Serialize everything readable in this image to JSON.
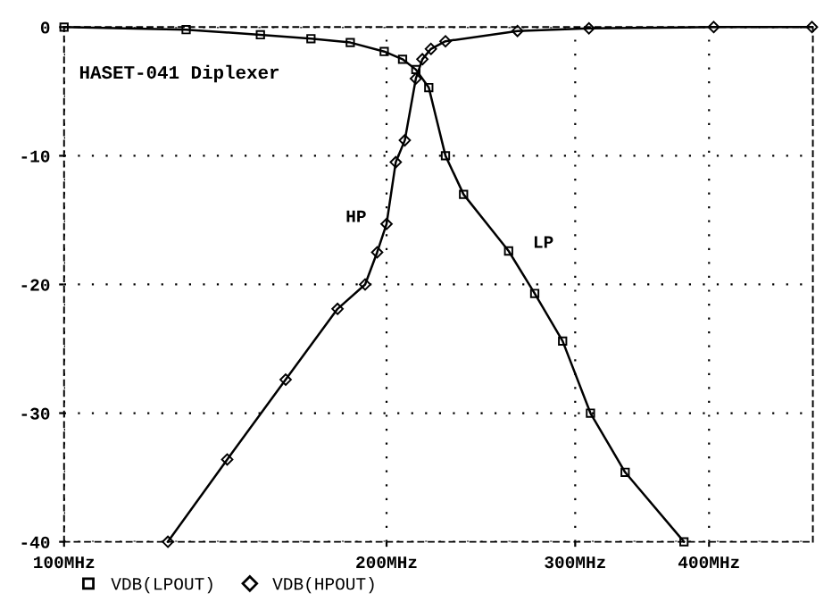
{
  "chart_data": {
    "type": "line",
    "title": "HASET-041 Diplexer",
    "log": "x",
    "xlim": [
      100,
      500
    ],
    "xticks": [
      {
        "value": 100,
        "label": "100MHz"
      },
      {
        "value": 200,
        "label": "200MHz"
      },
      {
        "value": 300,
        "label": "300MHz"
      },
      {
        "value": 400,
        "label": "400MHz"
      }
    ],
    "ylim": [
      -40,
      0
    ],
    "yticks": [
      -40,
      -30,
      -20,
      -10,
      0
    ],
    "grid": true,
    "legend": "bottom",
    "line_style": "solid",
    "annotations": [
      "HP",
      "LP"
    ],
    "series": [
      {
        "name": "VDB(LPOUT)",
        "color": "#000000",
        "marker": "square",
        "x": [
          100,
          130,
          152.5,
          170,
          185,
          199,
          207,
          213,
          219,
          227,
          236,
          260,
          275,
          292,
          310,
          334,
          379
        ],
        "values": [
          0,
          -0.2,
          -0.6,
          -0.9,
          -1.2,
          -1.9,
          -2.5,
          -3.3,
          -4.7,
          -10,
          -13,
          -17.4,
          -20.7,
          -24.4,
          -30,
          -34.6,
          -40
        ]
      },
      {
        "name": "VDB(HPOUT)",
        "color": "#000000",
        "marker": "diamond",
        "x": [
          125,
          142,
          161,
          180,
          191,
          196,
          200,
          204,
          208,
          213,
          216,
          220,
          227,
          265,
          309,
          404,
          499
        ],
        "values": [
          -40,
          -33.6,
          -27.4,
          -21.9,
          -20,
          -17.5,
          -15.3,
          -10.5,
          -8.8,
          -4,
          -2.5,
          -1.7,
          -1.1,
          -0.3,
          -0.1,
          0,
          0
        ]
      }
    ]
  }
}
